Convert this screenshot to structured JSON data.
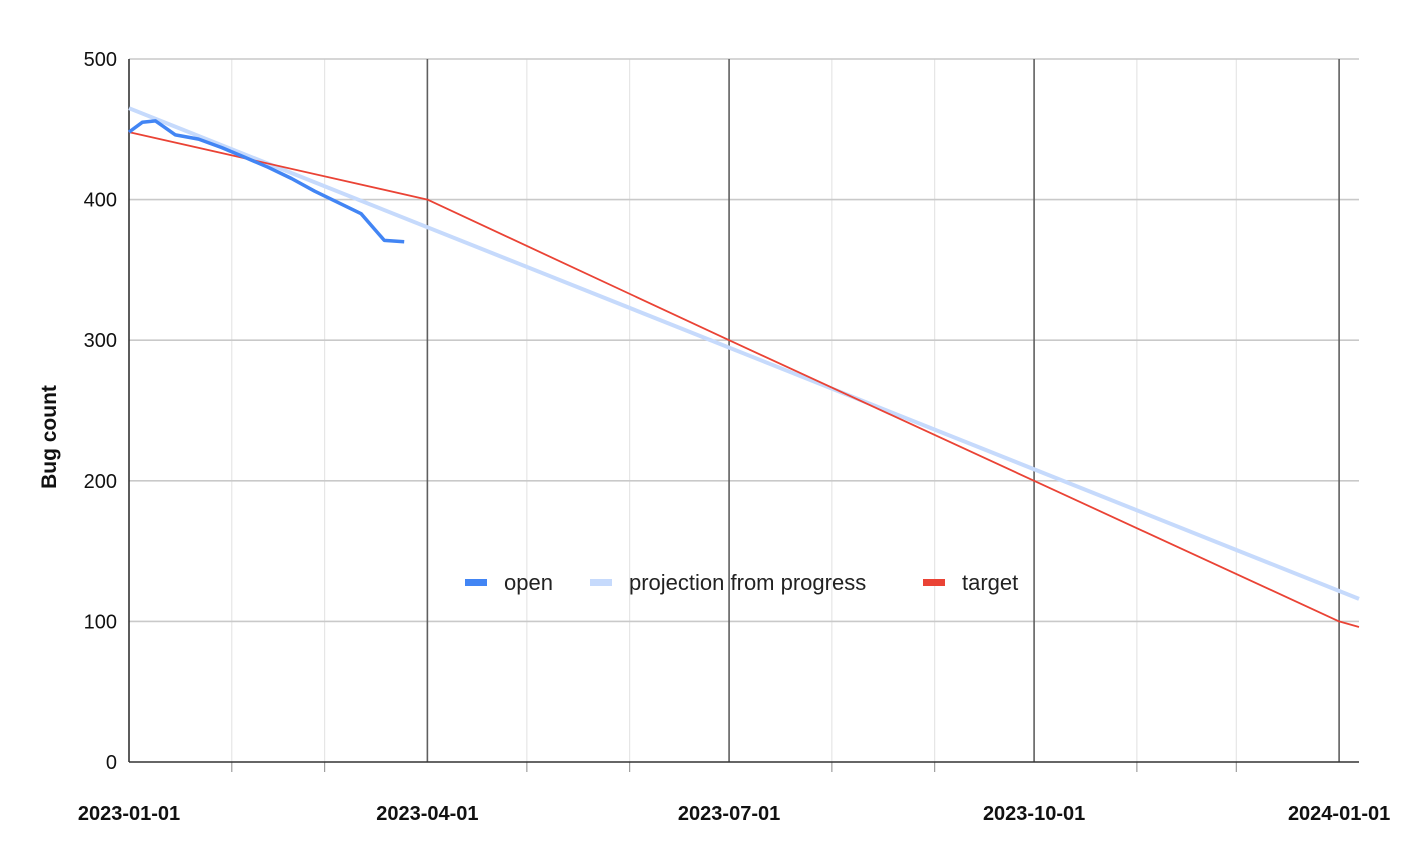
{
  "chart_data": {
    "type": "line",
    "title": "",
    "xlabel": "",
    "ylabel": "Bug count",
    "xlim": [
      "2023-01-01",
      "2024-01-07"
    ],
    "ylim": [
      0,
      500
    ],
    "y_ticks": [
      0,
      100,
      200,
      300,
      400,
      500
    ],
    "x_ticks": [
      "2023-01-01",
      "2023-04-01",
      "2023-07-01",
      "2023-10-01",
      "2024-01-01"
    ],
    "grid": true,
    "legend_position": "center",
    "series": [
      {
        "name": "open",
        "color": "#4285f4",
        "x": [
          "2023-01-01",
          "2023-01-05",
          "2023-01-09",
          "2023-01-15",
          "2023-01-22",
          "2023-01-29",
          "2023-02-05",
          "2023-02-12",
          "2023-02-19",
          "2023-02-26",
          "2023-03-05",
          "2023-03-12",
          "2023-03-19",
          "2023-03-25"
        ],
        "values": [
          448,
          455,
          456,
          446,
          443,
          437,
          430,
          423,
          415,
          406,
          398,
          390,
          371,
          370
        ]
      },
      {
        "name": "projection from progress",
        "color": "#c6dafc",
        "x": [
          "2023-01-01",
          "2024-01-07"
        ],
        "values": [
          465,
          116
        ]
      },
      {
        "name": "target",
        "color": "#ea4335",
        "x": [
          "2023-01-01",
          "2023-04-01",
          "2023-07-01",
          "2023-10-01",
          "2024-01-01",
          "2024-01-07"
        ],
        "values": [
          448,
          400,
          300,
          200,
          100,
          96
        ]
      }
    ]
  }
}
